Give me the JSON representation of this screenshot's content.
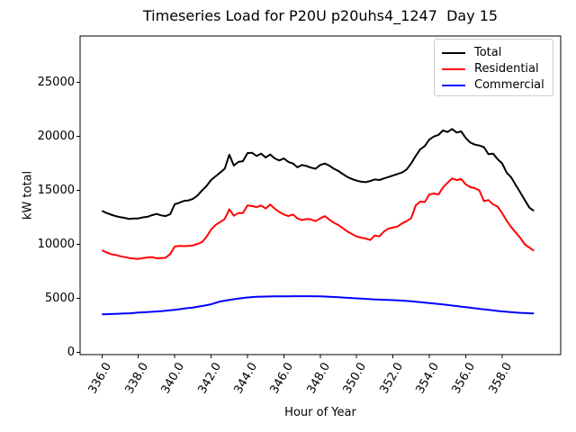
{
  "figure": {
    "title": "Timeseries Load for P20U p20uhs4_1247  Day 15",
    "xlabel": "Hour of Year",
    "ylabel": "kW total"
  },
  "chart_data": {
    "type": "line",
    "title": "Timeseries Load for P20U p20uhs4_1247  Day 15",
    "xlabel": "Hour of Year",
    "ylabel": "kW total",
    "grid": false,
    "legend_position": "upper right",
    "xlim": [
      334.8,
      361.2
    ],
    "ylim": [
      -200,
      29250
    ],
    "x_tick_labels": [
      "336.0",
      "338.0",
      "340.0",
      "342.0",
      "344.0",
      "346.0",
      "348.0",
      "350.0",
      "352.0",
      "354.0",
      "356.0",
      "358.0"
    ],
    "x_tick_values": [
      336,
      338,
      340,
      342,
      344,
      346,
      348,
      350,
      352,
      354,
      356,
      358
    ],
    "y_tick_labels": [
      "0",
      "5000",
      "10000",
      "15000",
      "20000",
      "25000"
    ],
    "y_tick_values": [
      0,
      5000,
      10000,
      15000,
      20000,
      25000
    ],
    "x_start": 336.0,
    "x_step": 0.25,
    "series": [
      {
        "name": "Total",
        "color": "#000000",
        "values": [
          13100,
          12900,
          12750,
          12620,
          12520,
          12450,
          12350,
          12400,
          12400,
          12500,
          12550,
          12700,
          12820,
          12680,
          12620,
          12790,
          13710,
          13850,
          14020,
          14070,
          14210,
          14520,
          14980,
          15400,
          15960,
          16300,
          16650,
          17000,
          18300,
          17300,
          17630,
          17700,
          18450,
          18480,
          18180,
          18400,
          18040,
          18320,
          17960,
          17770,
          17960,
          17630,
          17480,
          17130,
          17350,
          17250,
          17100,
          17000,
          17350,
          17480,
          17290,
          17000,
          16790,
          16500,
          16230,
          16050,
          15900,
          15800,
          15760,
          15870,
          16010,
          15960,
          16100,
          16230,
          16370,
          16520,
          16650,
          16930,
          17480,
          18180,
          18790,
          19100,
          19700,
          19980,
          20130,
          20540,
          20400,
          20680,
          20350,
          20460,
          19850,
          19430,
          19230,
          19150,
          19000,
          18350,
          18400,
          17900,
          17500,
          16650,
          16200,
          15500,
          14800,
          14100,
          13400,
          13100
        ]
      },
      {
        "name": "Residential",
        "color": "#ff0000",
        "values": [
          9450,
          9250,
          9100,
          9020,
          8900,
          8820,
          8730,
          8690,
          8650,
          8730,
          8780,
          8820,
          8710,
          8730,
          8760,
          9100,
          9790,
          9850,
          9830,
          9850,
          9900,
          10040,
          10200,
          10700,
          11370,
          11800,
          12070,
          12350,
          13250,
          12650,
          12900,
          12900,
          13600,
          13550,
          13450,
          13600,
          13320,
          13680,
          13300,
          13000,
          12770,
          12620,
          12770,
          12400,
          12250,
          12350,
          12300,
          12150,
          12400,
          12620,
          12290,
          12000,
          11790,
          11480,
          11180,
          10950,
          10730,
          10620,
          10540,
          10400,
          10820,
          10730,
          11180,
          11460,
          11550,
          11650,
          11930,
          12150,
          12400,
          13600,
          13960,
          13920,
          14620,
          14710,
          14620,
          15270,
          15700,
          16100,
          15950,
          16050,
          15550,
          15300,
          15200,
          15000,
          14000,
          14100,
          13700,
          13500,
          12900,
          12200,
          11600,
          11100,
          10600,
          10000,
          9700,
          9400
        ]
      },
      {
        "name": "Commercial",
        "color": "#0000ff",
        "values": [
          3520,
          3535,
          3550,
          3565,
          3580,
          3600,
          3620,
          3650,
          3680,
          3705,
          3730,
          3755,
          3780,
          3815,
          3850,
          3890,
          3930,
          3990,
          4050,
          4100,
          4150,
          4220,
          4290,
          4370,
          4450,
          4580,
          4710,
          4780,
          4850,
          4915,
          4980,
          5030,
          5080,
          5115,
          5150,
          5160,
          5170,
          5175,
          5180,
          5185,
          5190,
          5195,
          5200,
          5200,
          5200,
          5200,
          5200,
          5190,
          5180,
          5165,
          5150,
          5125,
          5100,
          5075,
          5050,
          5025,
          5000,
          4975,
          4950,
          4925,
          4900,
          4885,
          4870,
          4850,
          4830,
          4810,
          4790,
          4760,
          4730,
          4690,
          4650,
          4610,
          4570,
          4525,
          4480,
          4430,
          4380,
          4335,
          4290,
          4235,
          4180,
          4130,
          4080,
          4030,
          3980,
          3930,
          3880,
          3835,
          3790,
          3755,
          3720,
          3690,
          3660,
          3640,
          3620,
          3600
        ]
      }
    ]
  }
}
